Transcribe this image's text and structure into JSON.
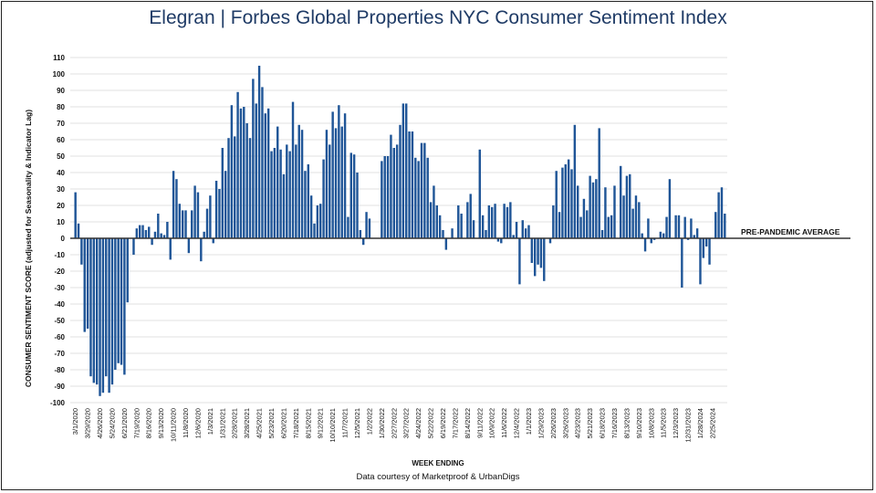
{
  "title": {
    "prefix": "Elegran | Forbes Global Properties",
    "suffix": "NYC Consumer Sentiment Index"
  },
  "source_note": "Data courtesy of Marketproof & UrbanDigs",
  "colors": {
    "bar": "#1f5597",
    "title": "#1f3b66",
    "grid": "#d9d9d9",
    "avg_line": "#333333"
  },
  "chart_data": {
    "type": "bar",
    "xlabel": "WEEK ENDING",
    "ylabel": "CONSUMER SENTIMENT SCORE (adjusted for Seasonality & Indicator Lag)",
    "ylim": [
      -100,
      110
    ],
    "yticks": [
      110,
      100,
      90,
      80,
      70,
      60,
      50,
      40,
      30,
      20,
      10,
      0,
      -10,
      -20,
      -30,
      -40,
      -50,
      -60,
      -70,
      -80,
      -90,
      -100
    ],
    "reference_line": {
      "value": 0,
      "label": "PRE-PANDEMIC AVERAGE"
    },
    "x_tick_labels": [
      "3/1/2020",
      "3/29/2020",
      "4/26/2020",
      "5/24/2020",
      "6/21/2020",
      "7/19/2020",
      "8/16/2020",
      "9/13/2020",
      "10/11/2020",
      "11/8/2020",
      "12/6/2020",
      "1/3/2021",
      "1/31/2021",
      "2/28/2021",
      "3/28/2021",
      "4/25/2021",
      "5/23/2021",
      "6/20/2021",
      "7/18/2021",
      "8/15/2021",
      "9/12/2021",
      "10/10/2021",
      "11/7/2021",
      "12/5/2021",
      "1/2/2022",
      "1/30/2022",
      "2/27/2022",
      "3/27/2022",
      "4/24/2022",
      "5/22/2022",
      "6/19/2022",
      "7/17/2022",
      "8/14/2022",
      "9/11/2022",
      "10/9/2022",
      "11/6/2022",
      "12/4/2022",
      "1/1/2023",
      "1/29/2023",
      "2/26/2023",
      "3/26/2023",
      "4/23/2023",
      "5/21/2023",
      "6/18/2023",
      "7/16/2023",
      "8/13/2023",
      "9/10/2023",
      "10/8/2023",
      "11/5/2023",
      "12/3/2023",
      "12/31/2023",
      "1/28/2024",
      "2/25/2024"
    ],
    "values": [
      28,
      9,
      -16,
      -57,
      -55,
      -84,
      -88,
      -89,
      -96,
      -94,
      -84,
      -94,
      -89,
      -80,
      -76,
      -77,
      -83,
      -39,
      0,
      -10,
      6,
      8,
      8,
      5,
      7,
      -4,
      4,
      15,
      3,
      2,
      10,
      -13,
      41,
      36,
      21,
      17,
      17,
      -9,
      17,
      32,
      28,
      -14,
      4,
      18,
      26,
      -3,
      35,
      30,
      55,
      41,
      61,
      81,
      62,
      89,
      79,
      80,
      70,
      61,
      97,
      82,
      105,
      92,
      76,
      79,
      53,
      55,
      68,
      54,
      39,
      57,
      53,
      83,
      57,
      69,
      66,
      41,
      45,
      26,
      9,
      20,
      21,
      48,
      66,
      57,
      77,
      67,
      81,
      68,
      76,
      13,
      52,
      51,
      40,
      5,
      -4,
      16,
      12,
      0,
      0,
      0,
      47,
      50,
      50,
      63,
      55,
      57,
      69,
      82,
      82,
      65,
      65,
      49,
      47,
      58,
      58,
      49,
      22,
      32,
      20,
      14,
      5,
      -7,
      0,
      6,
      0,
      20,
      15,
      0,
      22,
      27,
      11,
      0,
      54,
      14,
      5,
      20,
      19,
      21,
      -2,
      -3,
      21,
      19,
      22,
      2,
      10,
      -28,
      11,
      6,
      8,
      -15,
      -23,
      -16,
      -18,
      -26,
      0,
      -3,
      20,
      41,
      16,
      43,
      45,
      48,
      42,
      69,
      32,
      13,
      24,
      17,
      38,
      34,
      36,
      67,
      5,
      31,
      13,
      14,
      32,
      0,
      44,
      26,
      38,
      39,
      18,
      26,
      22,
      3,
      -8,
      12,
      -3,
      -1,
      0,
      4,
      3,
      13,
      36,
      0,
      14,
      14,
      -30,
      13,
      -1,
      12,
      2,
      6,
      -28,
      -12,
      -5,
      -16,
      0,
      16,
      28,
      31,
      15
    ]
  }
}
